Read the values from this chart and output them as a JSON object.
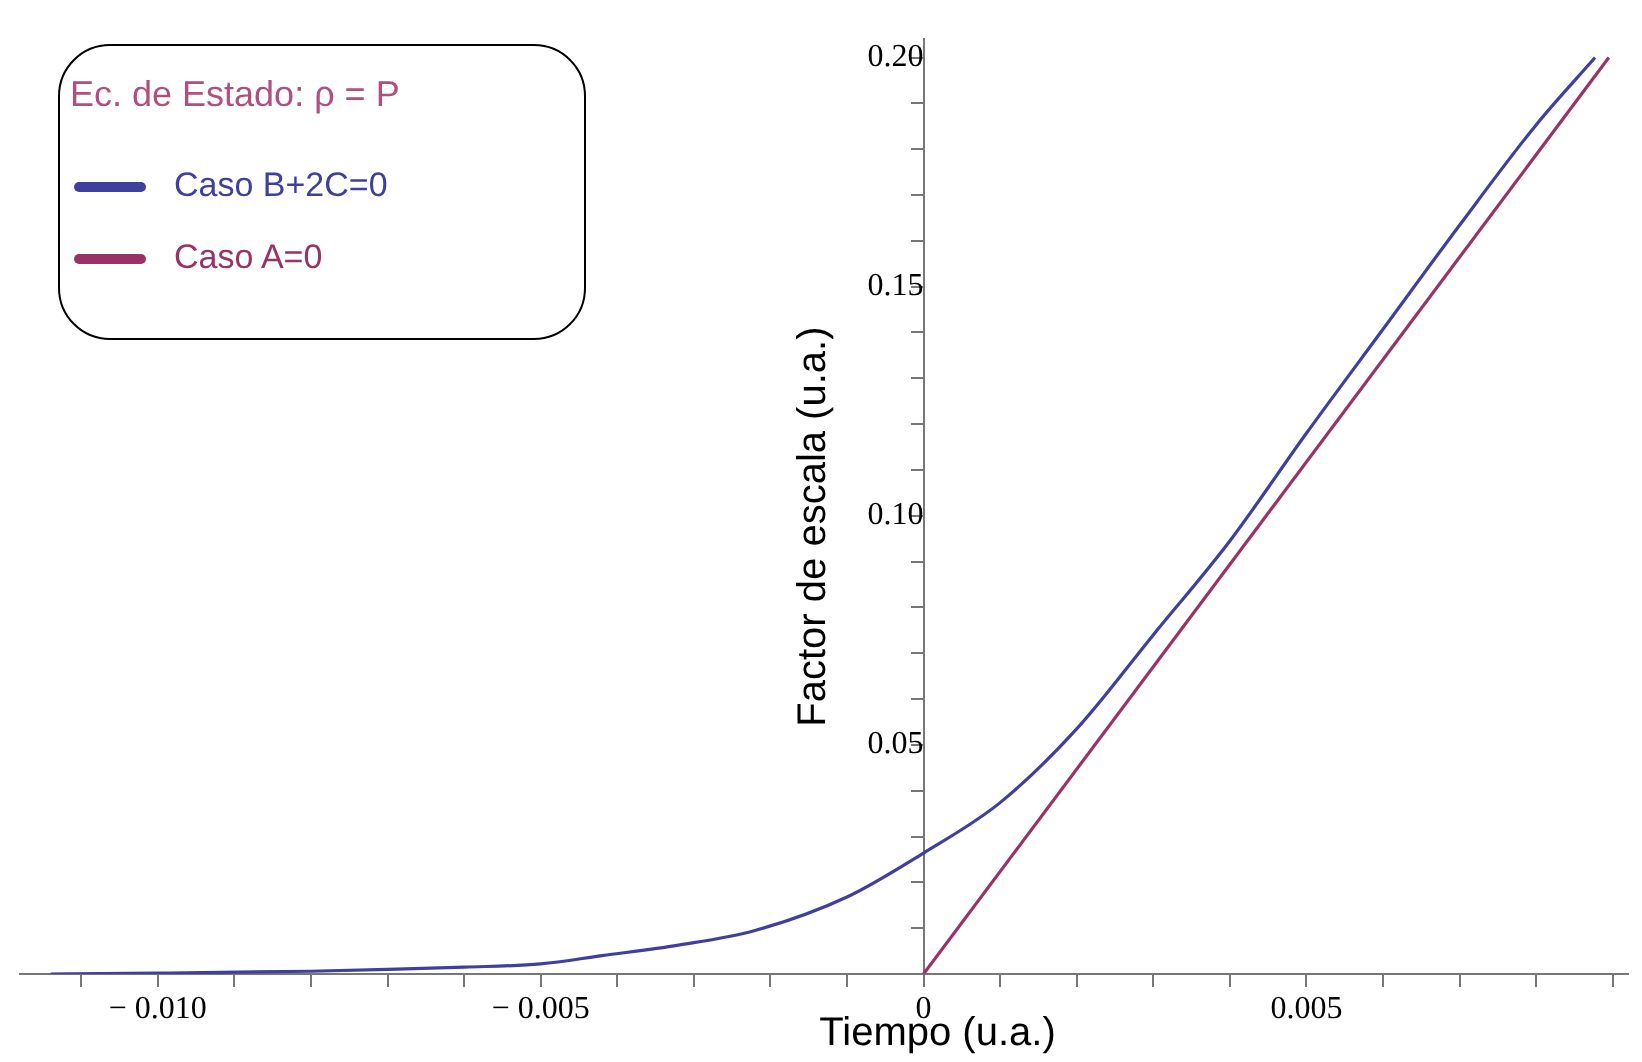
{
  "chart_data": {
    "type": "line",
    "xlabel": "Tiempo (u.a.)",
    "ylabel": "Factor de escala (u.a.)",
    "legend_title": "Ec. de Estado: ρ = P",
    "legend": "top left",
    "marker": "none",
    "line_style": "solid",
    "grid": false,
    "xlim": [
      -0.0118,
      0.0092
    ],
    "ylim": [
      0,
      0.204
    ],
    "xticks": [
      {
        "value": -0.011,
        "label": null
      },
      {
        "value": -0.01,
        "label": "− 0.010"
      },
      {
        "value": -0.009,
        "label": null
      },
      {
        "value": -0.008,
        "label": null
      },
      {
        "value": -0.007,
        "label": null
      },
      {
        "value": -0.006,
        "label": null
      },
      {
        "value": -0.005,
        "label": "− 0.005"
      },
      {
        "value": -0.004,
        "label": null
      },
      {
        "value": -0.003,
        "label": null
      },
      {
        "value": -0.002,
        "label": null
      },
      {
        "value": -0.001,
        "label": null
      },
      0,
      {
        "value": 0.001,
        "label": null
      },
      {
        "value": 0.002,
        "label": null
      },
      {
        "value": 0.003,
        "label": null
      },
      {
        "value": 0.004,
        "label": null
      },
      0.005,
      {
        "value": 0.006,
        "label": null
      },
      {
        "value": 0.007,
        "label": null
      },
      {
        "value": 0.008,
        "label": null
      },
      {
        "value": 0.009,
        "label": null
      }
    ],
    "yticks": [
      {
        "value": 0.01,
        "label": null
      },
      {
        "value": 0.02,
        "label": null
      },
      {
        "value": 0.03,
        "label": null
      },
      {
        "value": 0.04,
        "label": null
      },
      {
        "value": 0.05,
        "label": "0.05"
      },
      {
        "value": 0.06,
        "label": null
      },
      {
        "value": 0.07,
        "label": null
      },
      {
        "value": 0.08,
        "label": null
      },
      {
        "value": 0.09,
        "label": null
      },
      {
        "value": 0.1,
        "label": "0.10"
      },
      {
        "value": 0.11,
        "label": null
      },
      {
        "value": 0.12,
        "label": null
      },
      {
        "value": 0.13,
        "label": null
      },
      {
        "value": 0.14,
        "label": null
      },
      {
        "value": 0.15,
        "label": "0.15"
      },
      {
        "value": 0.16,
        "label": null
      },
      {
        "value": 0.17,
        "label": null
      },
      {
        "value": 0.18,
        "label": null
      },
      {
        "value": 0.19,
        "label": null
      },
      {
        "value": 0.2,
        "label": "0.20"
      }
    ],
    "series": [
      {
        "name": "Caso B+2C=0",
        "color": "#3f3fa0",
        "x": [
          -0.0114,
          -0.01,
          -0.008,
          -0.007,
          -0.006,
          -0.005,
          -0.0042,
          -0.0032,
          -0.0022,
          -0.001,
          0,
          0.001,
          0.002,
          0.003,
          0.004,
          0.005,
          0.006,
          0.007,
          0.008,
          0.00877
        ],
        "values": [
          0.0,
          0.0002,
          0.0006,
          0.001,
          0.0015,
          0.0022,
          0.004,
          0.0063,
          0.0095,
          0.0168,
          0.0264,
          0.0374,
          0.0535,
          0.074,
          0.0945,
          0.118,
          0.1407,
          0.1634,
          0.1853,
          0.2
        ]
      },
      {
        "name": "Caso A=0",
        "color": "#993366",
        "x": [
          0,
          0.00895
        ],
        "values": [
          0,
          0.2
        ]
      }
    ]
  }
}
